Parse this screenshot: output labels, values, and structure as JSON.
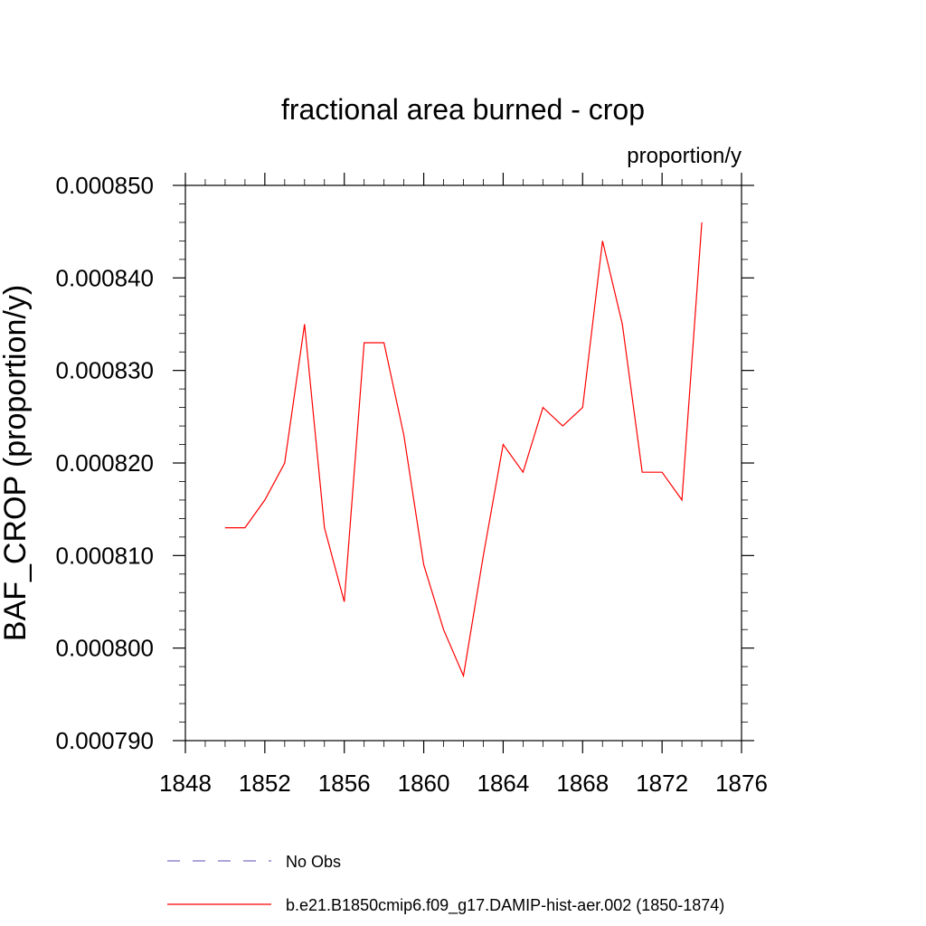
{
  "chart_data": {
    "type": "line",
    "title": "fractional area burned - crop",
    "units_label": "proportion/y",
    "ylabel": "BAF_CROP  (proportion/y)",
    "xlabel": "",
    "xlim": [
      1848,
      1876
    ],
    "ylim": [
      0.00079,
      0.00085
    ],
    "x_ticks": [
      1848,
      1852,
      1856,
      1860,
      1864,
      1868,
      1872,
      1876
    ],
    "x_tick_labels": [
      "1848",
      "1852",
      "1856",
      "1860",
      "1864",
      "1868",
      "1872",
      "1876"
    ],
    "y_ticks": [
      0.00079,
      0.0008,
      0.00081,
      0.00082,
      0.00083,
      0.00084,
      0.00085
    ],
    "y_tick_labels": [
      "0.000790",
      "0.000800",
      "0.000810",
      "0.000820",
      "0.000830",
      "0.000840",
      "0.000850"
    ],
    "series": [
      {
        "name": "b.e21.B1850cmip6.f09_g17.DAMIP-hist-aer.002 (1850-1874)",
        "color": "#ff0000",
        "x": [
          1850,
          1851,
          1852,
          1853,
          1854,
          1855,
          1856,
          1857,
          1858,
          1859,
          1860,
          1861,
          1862,
          1863,
          1864,
          1865,
          1866,
          1867,
          1868,
          1869,
          1870,
          1871,
          1872,
          1873,
          1874
        ],
        "y": [
          0.000813,
          0.000813,
          0.000816,
          0.00082,
          0.000835,
          0.000813,
          0.000805,
          0.000833,
          0.000833,
          0.000823,
          0.000809,
          0.000802,
          0.000797,
          0.00081,
          0.000822,
          0.000819,
          0.000826,
          0.000824,
          0.000826,
          0.000844,
          0.000835,
          0.000819,
          0.000819,
          0.000816,
          0.000846
        ]
      }
    ],
    "legend": [
      {
        "label": "No Obs",
        "color": "#7b6fc0",
        "style": "dashed"
      },
      {
        "label": "b.e21.B1850cmip6.f09_g17.DAMIP-hist-aer.002 (1850-1874)",
        "color": "#ff0000",
        "style": "solid"
      }
    ],
    "legend_position": "bottom",
    "grid": false
  }
}
